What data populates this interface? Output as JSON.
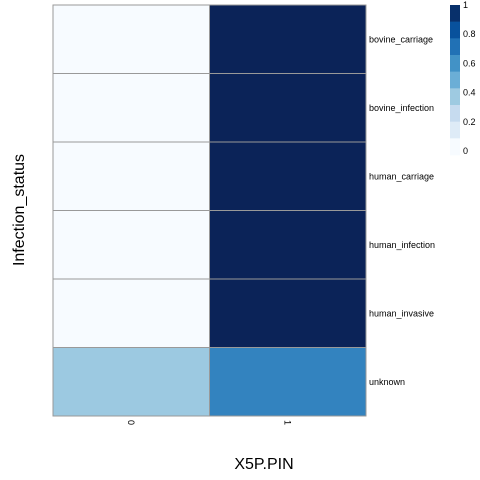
{
  "chart_data": {
    "type": "heatmap",
    "xlabel": "X5P.PIN",
    "ylabel": "Infection_status",
    "columns": [
      "0",
      "1"
    ],
    "rows": [
      "bovine_carriage",
      "bovine_infection",
      "human_carriage",
      "human_infection",
      "human_invasive",
      "unknown"
    ],
    "values": [
      [
        0,
        1
      ],
      [
        0,
        1
      ],
      [
        0,
        1
      ],
      [
        0,
        1
      ],
      [
        0,
        1
      ],
      [
        0.38,
        0.68
      ]
    ],
    "color_range": [
      0,
      1
    ],
    "legend": {
      "ticks": [
        "0",
        "0.2",
        "0.4",
        "0.6",
        "0.8",
        "1"
      ],
      "tick_values": [
        0,
        0.2,
        0.4,
        0.6,
        0.8,
        1
      ],
      "bin_colors": [
        "#f7fbff",
        "#deebf7",
        "#c6dbef",
        "#9ecae1",
        "#6baed6",
        "#4292c6",
        "#2171b5",
        "#08519c",
        "#08306b"
      ],
      "placement": "top-right"
    },
    "colors": {
      "low": "#f7fbff",
      "high": "#0b2358",
      "cell_border": "#999999"
    }
  }
}
